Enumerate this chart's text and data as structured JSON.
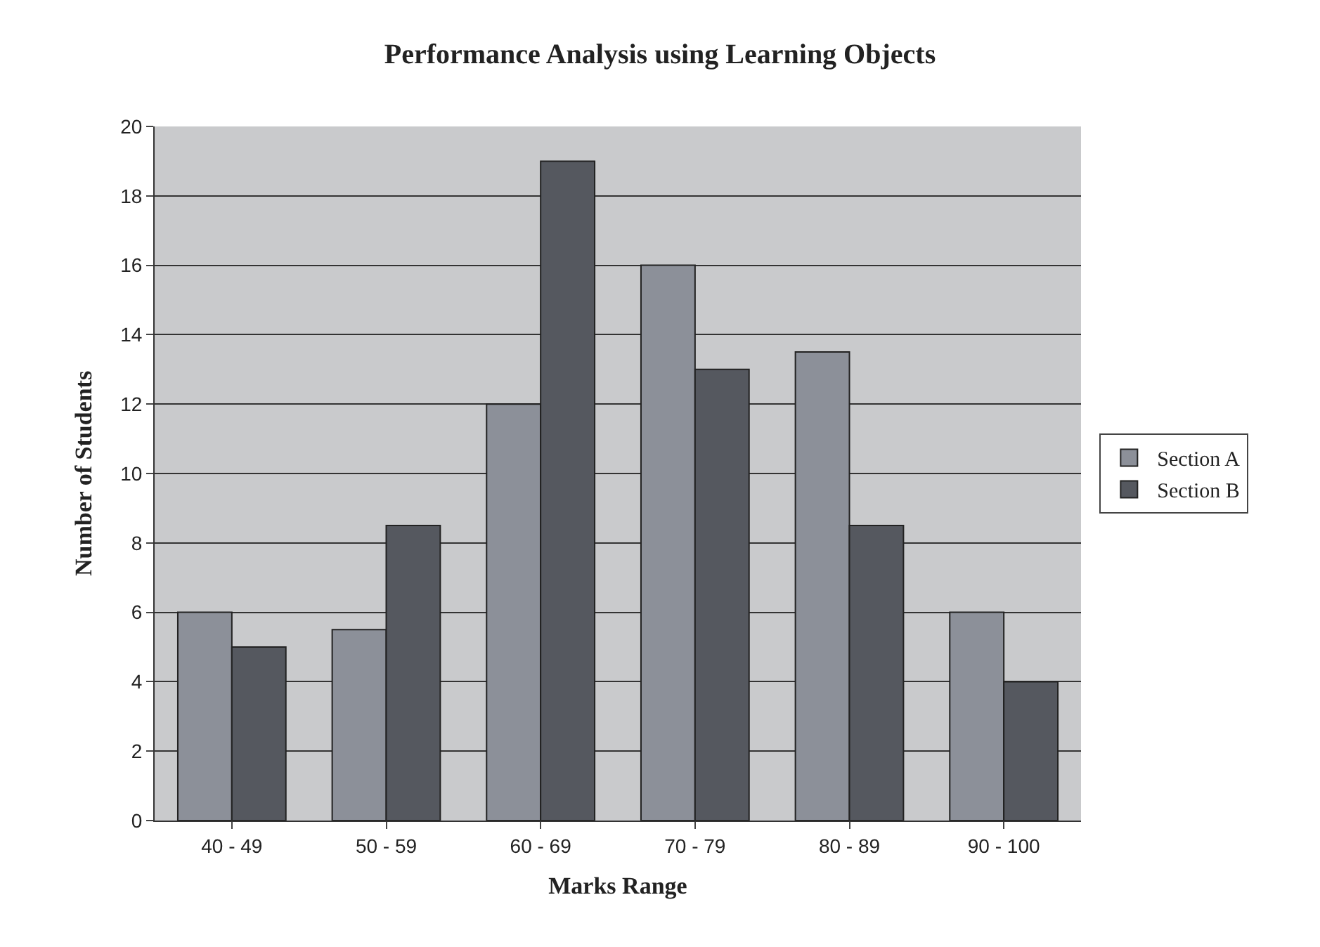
{
  "chart_data": {
    "type": "bar",
    "title": "Performance Analysis using Learning Objects",
    "xlabel": "Marks Range",
    "ylabel": "Number of Students",
    "categories": [
      "40 - 49",
      "50 - 59",
      "60 - 69",
      "70 - 79",
      "80 - 89",
      "90 - 100"
    ],
    "series": [
      {
        "name": "Section A",
        "color": "#8c9099",
        "values": [
          6,
          5.5,
          12,
          16,
          13.5,
          6
        ]
      },
      {
        "name": "Section B",
        "color": "#55585f",
        "values": [
          5,
          8.5,
          19,
          13,
          8.5,
          4
        ]
      }
    ],
    "ylim": [
      0,
      20
    ],
    "yticks": [
      0,
      2,
      4,
      6,
      8,
      10,
      12,
      14,
      16,
      18,
      20
    ],
    "grid": "y",
    "legend": "right"
  }
}
